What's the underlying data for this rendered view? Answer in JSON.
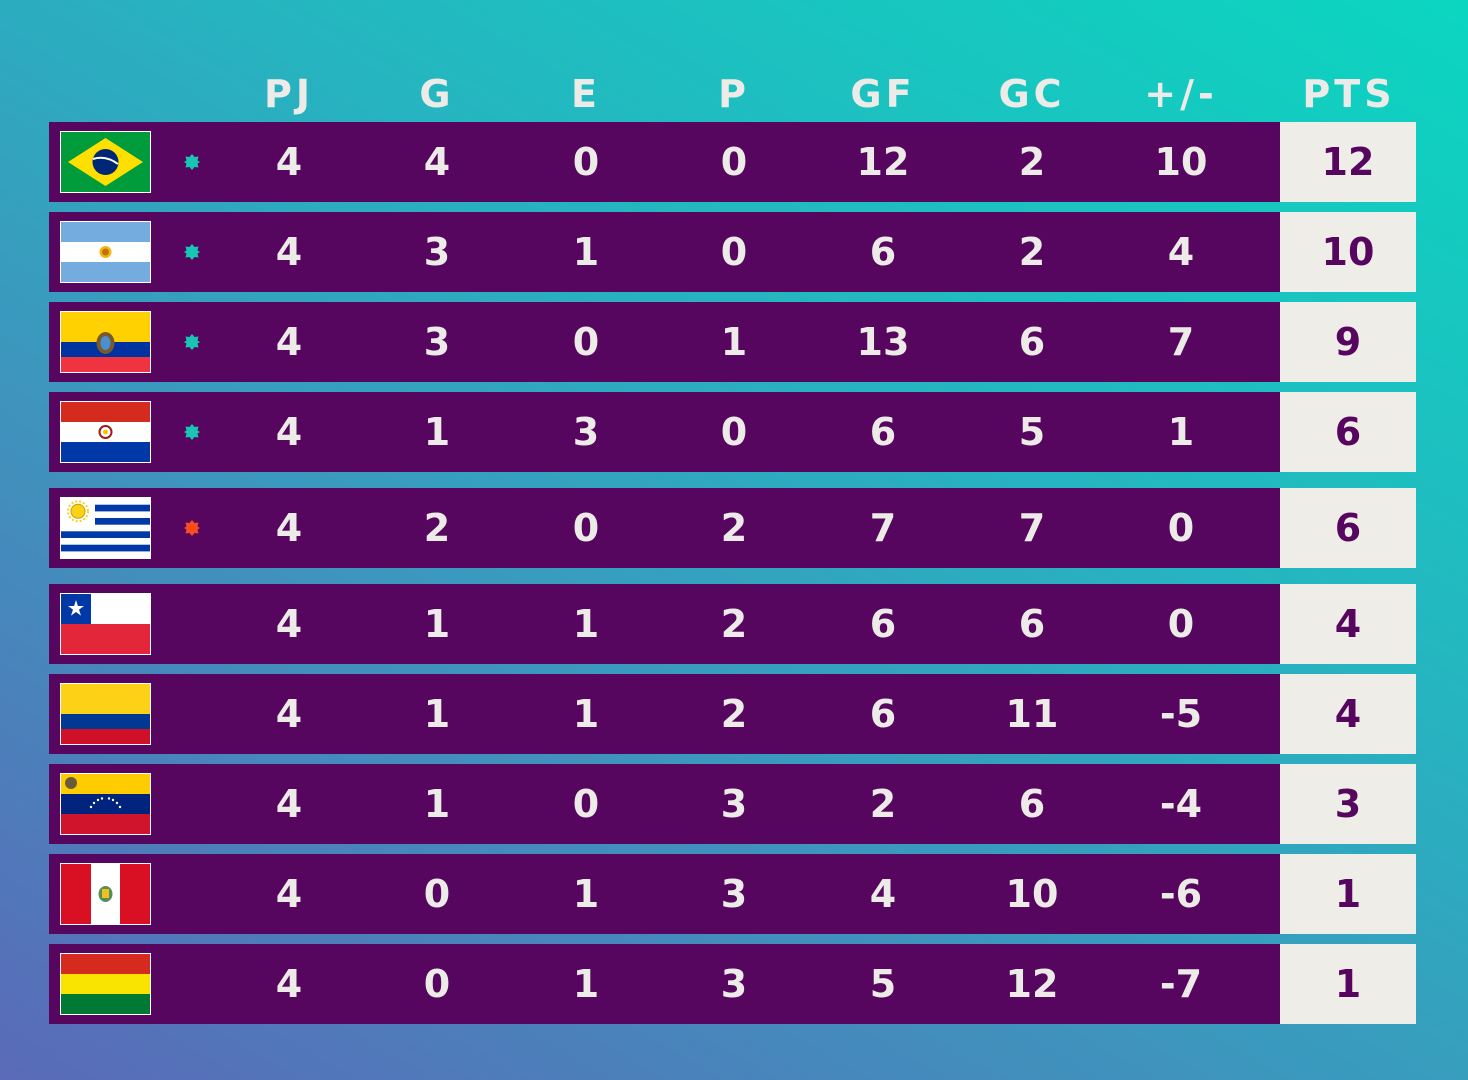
{
  "colors": {
    "row_background": "#56065f",
    "points_background": "#efede7",
    "text": "#ecebe7",
    "qualified_marker": "#18c6b6",
    "playoff_marker": "#ff4a1c"
  },
  "columns": {
    "pj": "PJ",
    "g": "G",
    "e": "E",
    "p": "P",
    "gf": "GF",
    "gc": "GC",
    "diff": "+/-",
    "pts": "PTS"
  },
  "teams": [
    {
      "flag": "brazil-flag-icon",
      "marker": "qualified",
      "pj": "4",
      "g": "4",
      "e": "0",
      "p": "0",
      "gf": "12",
      "gc": "2",
      "diff": "10",
      "pts": "12"
    },
    {
      "flag": "argentina-flag-icon",
      "marker": "qualified",
      "pj": "4",
      "g": "3",
      "e": "1",
      "p": "0",
      "gf": "6",
      "gc": "2",
      "diff": "4",
      "pts": "10"
    },
    {
      "flag": "ecuador-flag-icon",
      "marker": "qualified",
      "pj": "4",
      "g": "3",
      "e": "0",
      "p": "1",
      "gf": "13",
      "gc": "6",
      "diff": "7",
      "pts": "9"
    },
    {
      "flag": "paraguay-flag-icon",
      "marker": "qualified",
      "pj": "4",
      "g": "1",
      "e": "3",
      "p": "0",
      "gf": "6",
      "gc": "5",
      "diff": "1",
      "pts": "6"
    },
    {
      "flag": "uruguay-flag-icon",
      "marker": "playoff",
      "pj": "4",
      "g": "2",
      "e": "0",
      "p": "2",
      "gf": "7",
      "gc": "7",
      "diff": "0",
      "pts": "6"
    },
    {
      "flag": "chile-flag-icon",
      "marker": "none",
      "pj": "4",
      "g": "1",
      "e": "1",
      "p": "2",
      "gf": "6",
      "gc": "6",
      "diff": "0",
      "pts": "4"
    },
    {
      "flag": "colombia-flag-icon",
      "marker": "none",
      "pj": "4",
      "g": "1",
      "e": "1",
      "p": "2",
      "gf": "6",
      "gc": "11",
      "diff": "-5",
      "pts": "4"
    },
    {
      "flag": "venezuela-flag-icon",
      "marker": "none",
      "pj": "4",
      "g": "1",
      "e": "0",
      "p": "3",
      "gf": "2",
      "gc": "6",
      "diff": "-4",
      "pts": "3"
    },
    {
      "flag": "peru-flag-icon",
      "marker": "none",
      "pj": "4",
      "g": "0",
      "e": "1",
      "p": "3",
      "gf": "4",
      "gc": "10",
      "diff": "-6",
      "pts": "1"
    },
    {
      "flag": "bolivia-flag-icon",
      "marker": "none",
      "pj": "4",
      "g": "0",
      "e": "1",
      "p": "3",
      "gf": "5",
      "gc": "12",
      "diff": "-7",
      "pts": "1"
    }
  ]
}
